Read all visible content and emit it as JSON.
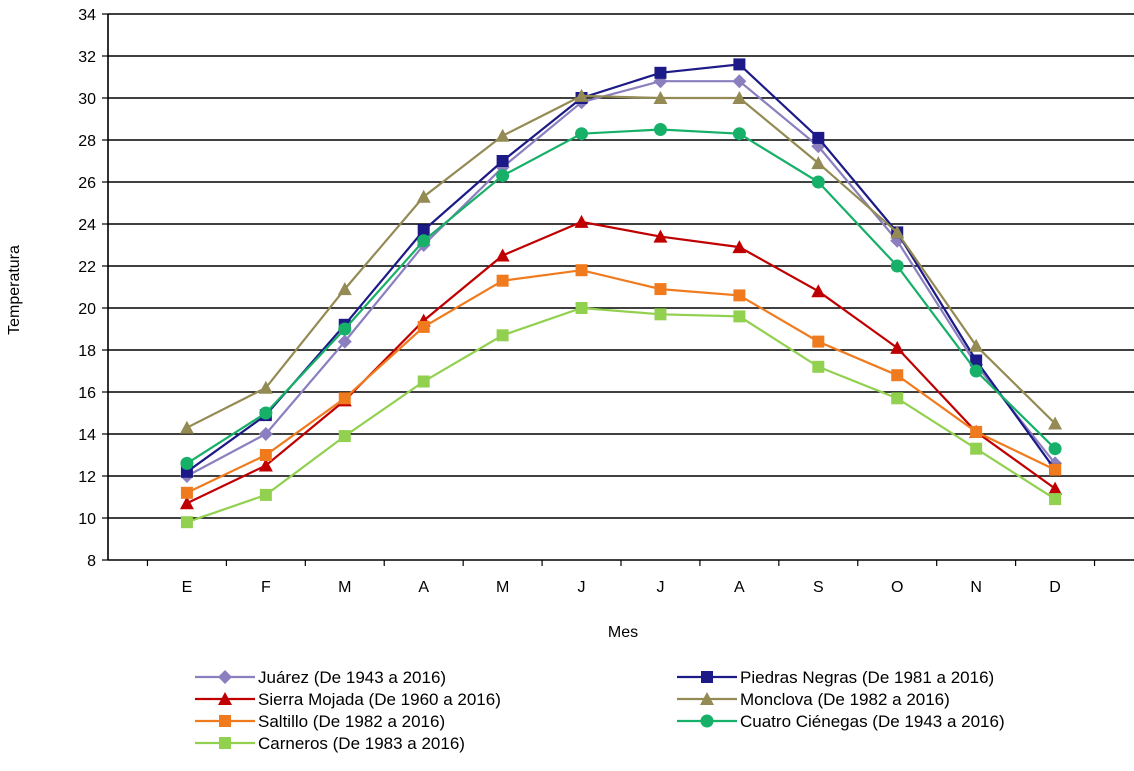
{
  "chart_data": {
    "type": "line",
    "title": "",
    "xlabel": "Mes",
    "ylabel": "Temperatura",
    "categories": [
      "E",
      "F",
      "M",
      "A",
      "M",
      "J",
      "J",
      "A",
      "S",
      "O",
      "N",
      "D"
    ],
    "ylim": [
      8,
      34
    ],
    "yticks": [
      8,
      10,
      12,
      14,
      16,
      18,
      20,
      22,
      24,
      26,
      28,
      30,
      32,
      34
    ],
    "grid": "horizontal",
    "legend_position": "bottom",
    "series": [
      {
        "name": "Juárez (De 1943 a 2016)",
        "color": "#8B7FBF",
        "marker": "diamond",
        "values": [
          12.0,
          14.0,
          18.4,
          23.0,
          26.7,
          29.8,
          30.8,
          30.8,
          27.7,
          23.2,
          17.3,
          12.6
        ]
      },
      {
        "name": "Piedras Negras (De 1981 a 2016)",
        "color": "#1C1A87",
        "marker": "square",
        "values": [
          12.2,
          14.9,
          19.2,
          23.7,
          27.0,
          30.0,
          31.2,
          31.6,
          28.1,
          23.6,
          17.5,
          12.3
        ]
      },
      {
        "name": "Sierra Mojada (De 1960 a 2016)",
        "color": "#C00000",
        "marker": "triangle",
        "values": [
          10.7,
          12.5,
          15.6,
          19.4,
          22.5,
          24.1,
          23.4,
          22.9,
          20.8,
          18.1,
          14.1,
          11.4
        ]
      },
      {
        "name": "Monclova (De 1982 a 2016)",
        "color": "#948A54",
        "marker": "triangle",
        "values": [
          14.3,
          16.2,
          20.9,
          25.3,
          28.2,
          30.1,
          30.0,
          30.0,
          26.9,
          23.6,
          18.2,
          14.5
        ]
      },
      {
        "name": "Saltillo (De 1982 a 2016)",
        "color": "#F07B1E",
        "marker": "square",
        "values": [
          11.2,
          13.0,
          15.7,
          19.1,
          21.3,
          21.8,
          20.9,
          20.6,
          18.4,
          16.8,
          14.1,
          12.3
        ]
      },
      {
        "name": "Cuatro Ciénegas (De 1943 a 2016)",
        "color": "#16B068",
        "marker": "circle",
        "values": [
          12.6,
          15.0,
          19.0,
          23.2,
          26.3,
          28.3,
          28.5,
          28.3,
          26.0,
          22.0,
          17.0,
          13.3
        ]
      },
      {
        "name": "Carneros (De 1983 a 2016)",
        "color": "#92D050",
        "marker": "square",
        "values": [
          9.8,
          11.1,
          13.9,
          16.5,
          18.7,
          20.0,
          19.7,
          19.6,
          17.2,
          15.7,
          13.3,
          10.9
        ]
      }
    ]
  }
}
